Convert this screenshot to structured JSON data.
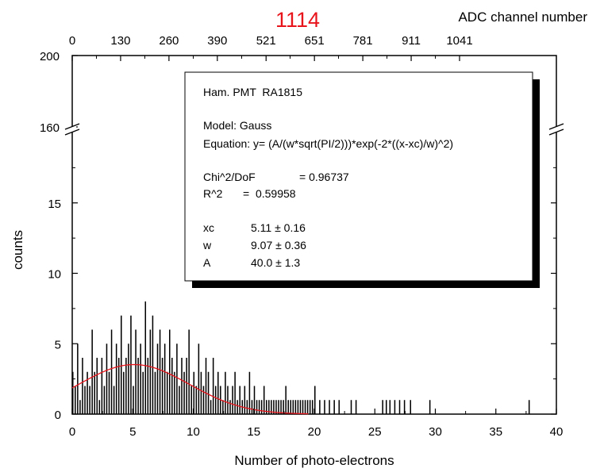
{
  "chart_data": {
    "type": "bar",
    "title": "1114",
    "title_color": "#e8141b",
    "fit_color": "#e8141b",
    "bar_color": "#000000",
    "xlabel": "Number of photo-electrons",
    "ylabel": "counts",
    "top_xlabel": "ADC channel number",
    "xlim": [
      0,
      40
    ],
    "ylim_lower": [
      0,
      20
    ],
    "ylim_upper": [
      160,
      200
    ],
    "x_ticks": [
      "0",
      "5",
      "10",
      "15",
      "20",
      "25",
      "30",
      "35",
      "40"
    ],
    "y_ticks_lower": [
      "0",
      "5",
      "10",
      "15"
    ],
    "y_ticks_upper": [
      "160",
      "200"
    ],
    "top_ticks": [
      "0",
      "130",
      "260",
      "390",
      "521",
      "651",
      "781",
      "911",
      "1041"
    ],
    "legend_position": "upper-right",
    "stats_box": {
      "instrument": "Ham. PMT  RA1815",
      "model": "Model: Gauss",
      "equation": "Equation: y= (A/(w*sqrt(PI/2)))*exp(-2*((x-xc)/w)^2)",
      "chi_label": "Chi^2/DoF",
      "chi_value": "= 0.96737",
      "r2_label": "R^2",
      "r2_value": "=  0.59958",
      "params": [
        {
          "name": "xc",
          "value": "5.11 ± 0.16"
        },
        {
          "name": "w",
          "value": "9.07 ± 0.36"
        },
        {
          "name": "A",
          "value": "40.0 ± 1.3"
        }
      ]
    },
    "fit": {
      "xc": 5.11,
      "w": 9.07,
      "A": 40.0
    },
    "series": [
      {
        "name": "histogram",
        "x": [
          0.0,
          0.2,
          0.4,
          0.6,
          0.8,
          1.0,
          1.2,
          1.4,
          1.6,
          1.8,
          2.0,
          2.2,
          2.4,
          2.6,
          2.8,
          3.0,
          3.2,
          3.4,
          3.6,
          3.8,
          4.0,
          4.2,
          4.4,
          4.6,
          4.8,
          5.0,
          5.2,
          5.4,
          5.6,
          5.8,
          6.0,
          6.2,
          6.4,
          6.6,
          6.8,
          7.0,
          7.2,
          7.4,
          7.6,
          7.8,
          8.0,
          8.2,
          8.4,
          8.6,
          8.8,
          9.0,
          9.2,
          9.4,
          9.6,
          9.8,
          10.0,
          10.2,
          10.4,
          10.6,
          10.8,
          11.0,
          11.2,
          11.4,
          11.6,
          11.8,
          12.0,
          12.2,
          12.4,
          12.6,
          12.8,
          13.0,
          13.2,
          13.4,
          13.6,
          13.8,
          14.0,
          14.2,
          14.4,
          14.6,
          14.8,
          15.0,
          15.2,
          15.4,
          15.6,
          15.8,
          16.0,
          16.2,
          16.4,
          16.6,
          16.8,
          17.0,
          17.2,
          17.4,
          17.6,
          17.8,
          18.0,
          18.2,
          18.4,
          18.6,
          18.8,
          19.0,
          19.2,
          19.4,
          19.6,
          19.8,
          20.0,
          20.4,
          20.8,
          21.2,
          21.6,
          22.0,
          23.0,
          23.4,
          25.6,
          25.9,
          26.2,
          26.6,
          27.0,
          27.4,
          27.9,
          29.5,
          37.7
        ],
        "values": [
          3,
          2,
          5,
          1,
          4,
          2,
          3,
          2,
          6,
          3,
          4,
          1,
          4,
          2,
          5,
          3,
          6,
          2,
          5,
          4,
          7,
          3,
          4,
          5,
          7,
          2,
          6,
          4,
          5,
          3,
          8,
          4,
          6,
          7,
          3,
          5,
          6,
          4,
          5,
          3,
          6,
          4,
          3,
          5,
          2,
          4,
          3,
          4,
          6,
          2,
          3,
          2,
          5,
          3,
          2,
          4,
          3,
          1,
          4,
          2,
          3,
          2,
          1,
          3,
          2,
          1,
          2,
          3,
          1,
          2,
          1,
          2,
          1,
          3,
          1,
          2,
          1,
          1,
          1,
          2,
          1,
          1,
          1,
          1,
          1,
          1,
          1,
          1,
          2,
          1,
          1,
          1,
          1,
          1,
          1,
          1,
          1,
          1,
          1,
          1,
          2,
          1,
          1,
          1,
          1,
          1,
          1,
          1,
          1,
          1,
          1,
          1,
          1,
          1,
          1,
          1,
          1
        ]
      }
    ]
  }
}
